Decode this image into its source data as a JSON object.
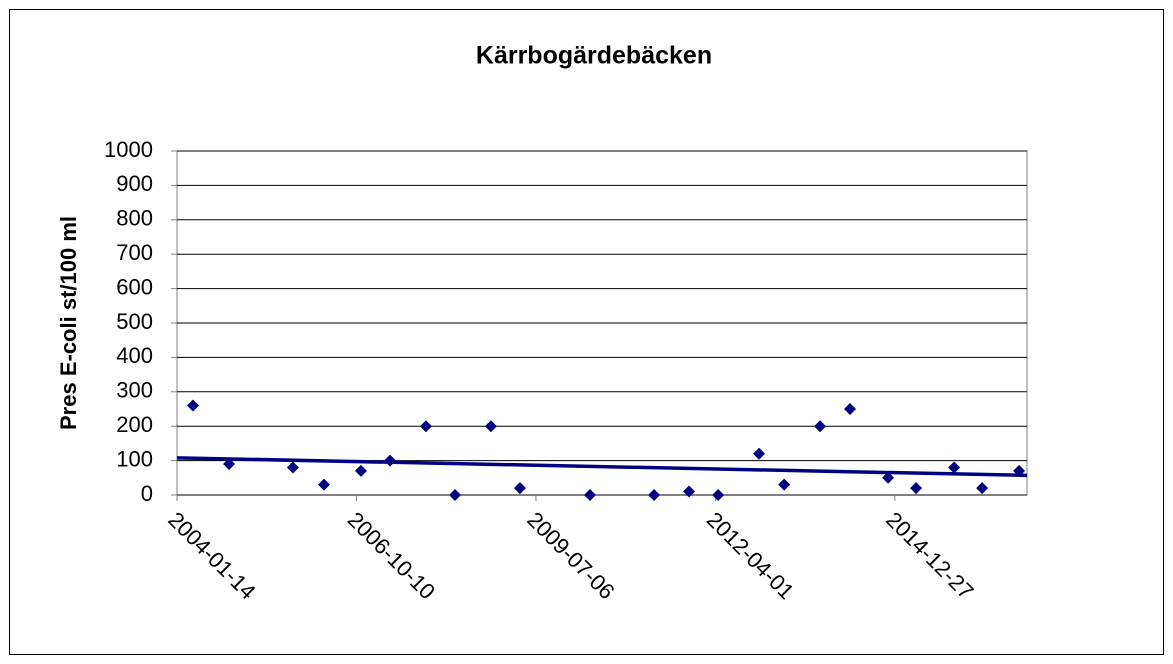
{
  "chart_data": {
    "type": "scatter",
    "title": "Kärrbogärdebäcken",
    "y_label": "Pres E-coli st/100 ml",
    "x": [
      "2004-04-12",
      "2004-10-30",
      "2005-10-21",
      "2006-04-12",
      "2006-11-04",
      "2007-04-15",
      "2007-11-01",
      "2008-04-11",
      "2008-10-28",
      "2009-04-08",
      "2010-05-03",
      "2011-04-25",
      "2011-11-06",
      "2012-04-16",
      "2012-11-30",
      "2013-04-19",
      "2013-11-05",
      "2014-04-21",
      "2014-11-19",
      "2015-04-24",
      "2015-11-22",
      "2016-04-26",
      "2016-11-18"
    ],
    "values": [
      260,
      90,
      80,
      30,
      70,
      100,
      200,
      0,
      200,
      20,
      0,
      0,
      10,
      0,
      120,
      30,
      200,
      250,
      50,
      20,
      80,
      20,
      70
    ],
    "color": "#000080",
    "trend": {
      "x": [
        "2004-01-14",
        "2017-01-01"
      ],
      "values": [
        108,
        57
      ],
      "color": "#000080"
    },
    "xlim": [
      "2004-01-14",
      "2017-01-01"
    ],
    "xticks": [
      "2004-01-14",
      "2006-10-10",
      "2009-07-06",
      "2012-04-01",
      "2014-12-27"
    ],
    "ylim": [
      0,
      1000
    ],
    "yticks": [
      0,
      100,
      200,
      300,
      400,
      500,
      600,
      700,
      800,
      900,
      1000
    ],
    "grid": true
  }
}
